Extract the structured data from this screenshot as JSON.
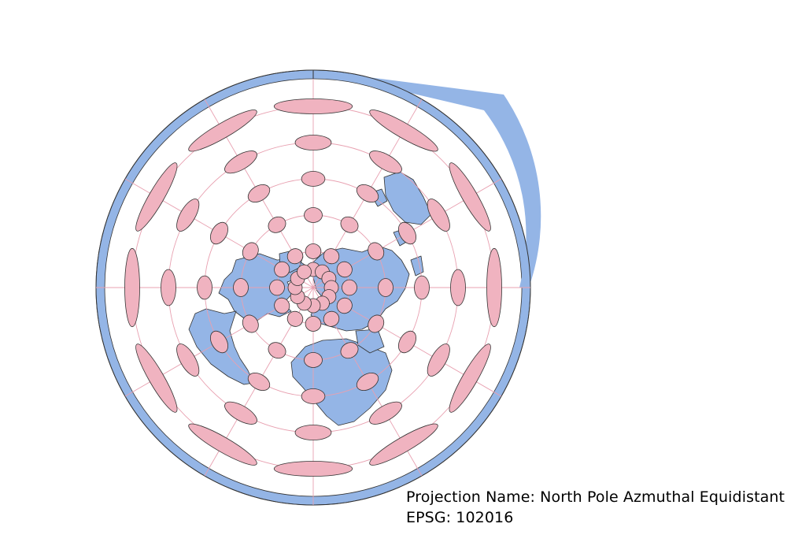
{
  "caption": {
    "projection_line": "Projection Name: North Pole Azmuthal Equidistant",
    "epsg_line": "EPSG: 102016"
  },
  "colors": {
    "land": "#94b5e6",
    "outline": "#333333",
    "graticule": "#e8a0b0",
    "tissot": "#f0b3c0",
    "background": "#ffffff"
  },
  "map": {
    "projection": "North Pole Azimuthal Equidistant",
    "tissot_indicatrix": true,
    "graticule_latitudes": [
      60,
      30,
      0,
      -30,
      -60
    ],
    "graticule_longitudes": [
      0,
      30,
      60,
      90,
      120,
      150,
      180,
      -150,
      -120,
      -90,
      -60,
      -30
    ],
    "tissot_latitudes": [
      -60,
      -30,
      0,
      30,
      60
    ],
    "tissot_longitudes": [
      0,
      30,
      60,
      90,
      120,
      150,
      180,
      -150,
      -120,
      -90,
      -60,
      -30
    ]
  }
}
